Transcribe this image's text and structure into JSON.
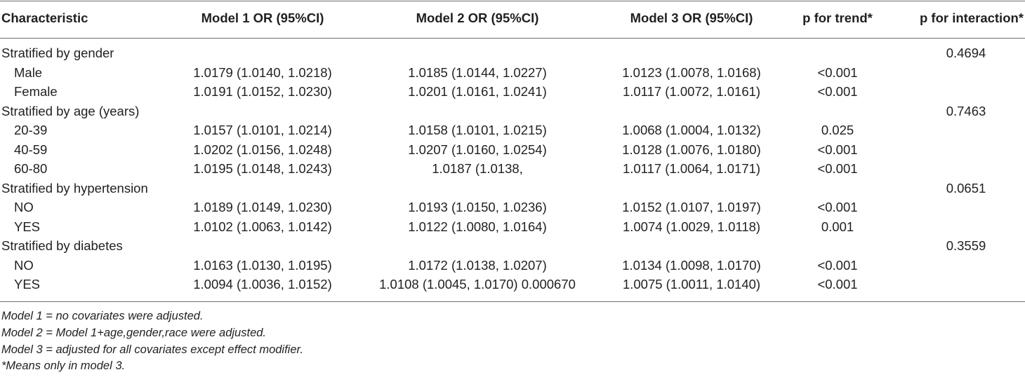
{
  "table": {
    "headers": [
      "Characteristic",
      "Model 1 OR (95%CI)",
      "Model 2 OR (95%CI)",
      "Model 3 OR (95%CI)",
      "p for trend*",
      "p for interaction*"
    ],
    "rows": [
      {
        "label": "Stratified by gender",
        "m1": "",
        "m2": "",
        "m3": "",
        "trend": "",
        "interaction": "0.4694"
      },
      {
        "label": "Male",
        "m1": "1.0179 (1.0140, 1.0218)",
        "m2": "1.0185 (1.0144, 1.0227)",
        "m3": "1.0123 (1.0078, 1.0168)",
        "trend": "<0.001",
        "interaction": ""
      },
      {
        "label": "Female",
        "m1": "1.0191 (1.0152, 1.0230)",
        "m2": "1.0201 (1.0161, 1.0241)",
        "m3": "1.0117 (1.0072, 1.0161)",
        "trend": "<0.001",
        "interaction": ""
      },
      {
        "label": "Stratified by age (years)",
        "m1": "",
        "m2": "",
        "m3": "",
        "trend": "",
        "interaction": "0.7463"
      },
      {
        "label": "20-39",
        "m1": "1.0157 (1.0101, 1.0214)",
        "m2": "1.0158 (1.0101, 1.0215)",
        "m3": "1.0068 (1.0004, 1.0132)",
        "trend": "0.025",
        "interaction": ""
      },
      {
        "label": "40-59",
        "m1": "1.0202 (1.0156, 1.0248)",
        "m2": "1.0207 (1.0160, 1.0254)",
        "m3": "1.0128 (1.0076, 1.0180)",
        "trend": "<0.001",
        "interaction": ""
      },
      {
        "label": "60-80",
        "m1": "1.0195 (1.0148, 1.0243)",
        "m2": "1.0187 (1.0138,",
        "m3": "1.0117 (1.0064, 1.0171)",
        "trend": "<0.001",
        "interaction": ""
      },
      {
        "label": "Stratified by hypertension",
        "m1": "",
        "m2": "",
        "m3": "",
        "trend": "",
        "interaction": "0.0651"
      },
      {
        "label": "NO",
        "m1": "1.0189 (1.0149, 1.0230)",
        "m2": "1.0193 (1.0150, 1.0236)",
        "m3": "1.0152 (1.0107, 1.0197)",
        "trend": "<0.001",
        "interaction": ""
      },
      {
        "label": "YES",
        "m1": "1.0102 (1.0063, 1.0142)",
        "m2": "1.0122 (1.0080, 1.0164)",
        "m3": "1.0074 (1.0029, 1.0118)",
        "trend": "0.001",
        "interaction": ""
      },
      {
        "label": "Stratified by diabetes",
        "m1": "",
        "m2": "",
        "m3": "",
        "trend": "",
        "interaction": "0.3559"
      },
      {
        "label": "NO",
        "m1": "1.0163 (1.0130, 1.0195)",
        "m2": "1.0172 (1.0138, 1.0207)",
        "m3": "1.0134 (1.0098, 1.0170)",
        "trend": "<0.001",
        "interaction": ""
      },
      {
        "label": "YES",
        "m1": "1.0094 (1.0036, 1.0152)",
        "m2": "1.0108 (1.0045, 1.0170) 0.000670",
        "m3": "1.0075 (1.0011, 1.0140)",
        "trend": "<0.001",
        "interaction": ""
      }
    ]
  },
  "notes": [
    "Model 1 = no covariates were adjusted.",
    "Model 2 = Model 1+age,gender,race were adjusted.",
    "Model 3 = adjusted for all covariates except effect modifier.",
    "*Means only in model 3."
  ]
}
